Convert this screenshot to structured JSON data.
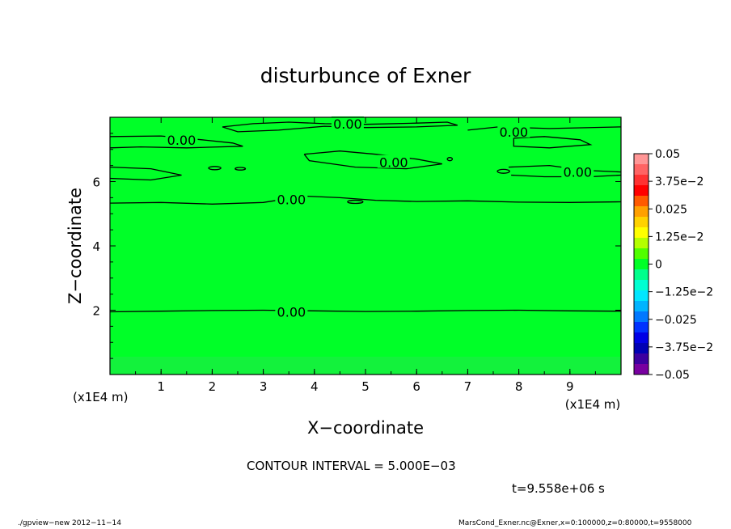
{
  "chart_data": {
    "type": "heatmap",
    "title": "disturbunce of Exner",
    "xlabel": "X−coordinate",
    "ylabel": "Z−coordinate",
    "x_unit_label": "(x1E4 m)",
    "y_unit_label": "(x1E4 m)",
    "xlim": [
      0,
      10
    ],
    "ylim": [
      0,
      8
    ],
    "x_ticks": [
      1,
      2,
      3,
      4,
      5,
      6,
      7,
      8,
      9
    ],
    "y_ticks": [
      2,
      4,
      6
    ],
    "x_tick_labels": [
      "1",
      "2",
      "3",
      "4",
      "5",
      "6",
      "7",
      "8",
      "9"
    ],
    "y_tick_labels": [
      "2",
      "4",
      "6"
    ],
    "field_color": "#00ff28",
    "field_color_bottom": "#13f23c",
    "contour_labels": [
      {
        "text": "0.00",
        "x": 4.65,
        "z": 7.8
      },
      {
        "text": "0.00",
        "x": 1.4,
        "z": 7.3
      },
      {
        "text": "0.00",
        "x": 7.9,
        "z": 7.55
      },
      {
        "text": "0.00",
        "x": 5.55,
        "z": 6.6
      },
      {
        "text": "0.00",
        "x": 9.15,
        "z": 6.3
      },
      {
        "text": "0.00",
        "x": 3.55,
        "z": 5.45
      },
      {
        "text": "0.00",
        "x": 3.55,
        "z": 1.95
      }
    ],
    "contours": [
      [
        [
          0,
          1.95
        ],
        [
          1,
          1.97
        ],
        [
          2,
          1.99
        ],
        [
          3,
          2.0
        ],
        [
          4,
          1.98
        ],
        [
          5,
          1.96
        ],
        [
          6,
          1.97
        ],
        [
          7,
          1.99
        ],
        [
          8,
          2.0
        ],
        [
          9,
          1.98
        ],
        [
          10,
          1.97
        ]
      ],
      [
        [
          0,
          5.33
        ],
        [
          1,
          5.35
        ],
        [
          2,
          5.3
        ],
        [
          3,
          5.35
        ],
        [
          3.8,
          5.55
        ],
        [
          4.5,
          5.5
        ],
        [
          5.2,
          5.42
        ],
        [
          6,
          5.38
        ],
        [
          7,
          5.4
        ],
        [
          8,
          5.36
        ],
        [
          9,
          5.35
        ],
        [
          10,
          5.37
        ]
      ],
      [
        [
          0,
          7.4
        ],
        [
          1,
          7.42
        ],
        [
          1.8,
          7.3
        ],
        [
          2.4,
          7.2
        ],
        [
          2.6,
          7.1
        ],
        [
          1.5,
          7.05
        ],
        [
          0.6,
          7.08
        ],
        [
          0,
          7.05
        ]
      ],
      [
        [
          2.2,
          7.7
        ],
        [
          2.8,
          7.8
        ],
        [
          3.5,
          7.85
        ],
        [
          4.2,
          7.8
        ],
        [
          5,
          7.78
        ],
        [
          6,
          7.82
        ],
        [
          6.6,
          7.85
        ],
        [
          6.8,
          7.75
        ],
        [
          6.0,
          7.7
        ],
        [
          5,
          7.68
        ],
        [
          4.2,
          7.72
        ],
        [
          3.3,
          7.6
        ],
        [
          2.5,
          7.55
        ],
        [
          2.2,
          7.7
        ]
      ],
      [
        [
          7.0,
          7.6
        ],
        [
          7.6,
          7.7
        ],
        [
          8.6,
          7.65
        ],
        [
          10,
          7.7
        ]
      ],
      [
        [
          7.9,
          7.35
        ],
        [
          8.5,
          7.4
        ],
        [
          9.2,
          7.3
        ],
        [
          9.4,
          7.15
        ],
        [
          8.6,
          7.05
        ],
        [
          7.9,
          7.1
        ],
        [
          7.9,
          7.35
        ]
      ],
      [
        [
          0,
          6.45
        ],
        [
          0.8,
          6.4
        ],
        [
          1.4,
          6.2
        ],
        [
          0.8,
          6.05
        ],
        [
          0,
          6.1
        ]
      ],
      [
        [
          3.8,
          6.85
        ],
        [
          4.5,
          6.95
        ],
        [
          5.2,
          6.85
        ],
        [
          6.0,
          6.7
        ],
        [
          6.5,
          6.55
        ],
        [
          5.8,
          6.4
        ],
        [
          4.8,
          6.45
        ],
        [
          3.9,
          6.65
        ],
        [
          3.8,
          6.85
        ]
      ],
      [
        [
          7.8,
          6.45
        ],
        [
          8.6,
          6.5
        ],
        [
          9.3,
          6.35
        ],
        [
          10,
          6.3
        ]
      ],
      [
        [
          7.85,
          6.2
        ],
        [
          8.5,
          6.15
        ],
        [
          9.4,
          6.15
        ],
        [
          10,
          6.2
        ]
      ]
    ],
    "small_cells": [
      {
        "x": 2.05,
        "z": 6.42,
        "rx": 0.12,
        "rz": 0.05
      },
      {
        "x": 2.55,
        "z": 6.4,
        "rx": 0.1,
        "rz": 0.04
      },
      {
        "x": 7.7,
        "z": 6.32,
        "rx": 0.12,
        "rz": 0.06
      },
      {
        "x": 6.65,
        "z": 6.7,
        "rx": 0.05,
        "rz": 0.05
      },
      {
        "x": 4.8,
        "z": 5.37,
        "rx": 0.15,
        "rz": 0.05
      }
    ],
    "colorbar": {
      "labels": [
        "0.05",
        "3.75e−2",
        "0.025",
        "1.25e−2",
        "0",
        "−1.25e−2",
        "−0.025",
        "−3.75e−2",
        "−0.05"
      ],
      "levels": [
        0.05,
        0.0375,
        0.025,
        0.0125,
        0,
        -0.0125,
        -0.025,
        -0.0375,
        -0.05
      ],
      "colors": [
        "#ff9696",
        "#ff6464",
        "#ff3232",
        "#ff0000",
        "#ff5a00",
        "#ffa000",
        "#ffd200",
        "#ffff00",
        "#b4ff00",
        "#50ff00",
        "#00ff28",
        "#00ff8c",
        "#00ffd2",
        "#00e6ff",
        "#00b4ff",
        "#0078ff",
        "#0032ff",
        "#0000e6",
        "#0000b4",
        "#3c00a0",
        "#7800a0"
      ]
    }
  },
  "annotations": {
    "contour_interval": "CONTOUR INTERVAL = 5.000E−03",
    "time": "t=9.558e+06 s",
    "footer_left": "./gpview−new  2012−11−14",
    "footer_right": "MarsCond_Exner.nc@Exner,x=0:100000,z=0:80000,t=9558000"
  }
}
